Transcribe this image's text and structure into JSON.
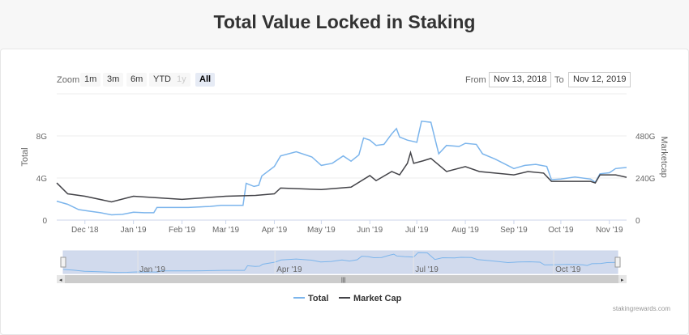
{
  "title": "Total Value Locked in Staking",
  "range_selector": {
    "zoom_label": "Zoom",
    "buttons": [
      {
        "label": "1m",
        "state": "normal"
      },
      {
        "label": "3m",
        "state": "normal"
      },
      {
        "label": "6m",
        "state": "normal"
      },
      {
        "label": "YTD",
        "state": "normal"
      },
      {
        "label": "1y",
        "state": "disabled"
      },
      {
        "label": "All",
        "state": "selected"
      }
    ],
    "from_label": "From",
    "from_value": "Nov 13, 2018",
    "to_label": "To",
    "to_value": "Nov 12, 2019"
  },
  "credit": "stakingrewards.com",
  "chart_data": {
    "type": "line",
    "title": "Total Value Locked in Staking",
    "xlim": [
      "2018-11-13",
      "2019-11-12"
    ],
    "x_ticks": [
      "Dec '18",
      "Jan '19",
      "Feb '19",
      "Mar '19",
      "Apr '19",
      "May '19",
      "Jun '19",
      "Jul '19",
      "Aug '19",
      "Sep '19",
      "Oct '19",
      "Nov '19"
    ],
    "y_left": {
      "label": "Total",
      "ticks": [
        "0",
        "4G",
        "8G"
      ],
      "range": [
        0,
        12
      ]
    },
    "y_right": {
      "label": "Marketcap",
      "ticks": [
        "0",
        "240G",
        "480G"
      ],
      "range": [
        0,
        720
      ]
    },
    "navigator_ticks": [
      "Jan '19",
      "Apr '19",
      "Jul '19",
      "Oct '19"
    ],
    "legend": "bottom-center",
    "grid": true,
    "colors": {
      "Total": "#7cb5ec",
      "Market Cap": "#434348"
    },
    "series": [
      {
        "name": "Total",
        "axis": "left",
        "unit": "G",
        "points": [
          [
            "2018-11-13",
            1.8
          ],
          [
            "2018-11-20",
            1.5
          ],
          [
            "2018-11-27",
            1.0
          ],
          [
            "2018-12-04",
            0.85
          ],
          [
            "2018-12-11",
            0.7
          ],
          [
            "2018-12-18",
            0.5
          ],
          [
            "2018-12-25",
            0.55
          ],
          [
            "2019-01-01",
            0.75
          ],
          [
            "2019-01-08",
            0.7
          ],
          [
            "2019-01-14",
            0.7
          ],
          [
            "2019-01-16",
            1.2
          ],
          [
            "2019-01-29",
            1.2
          ],
          [
            "2019-02-05",
            1.2
          ],
          [
            "2019-02-12",
            1.25
          ],
          [
            "2019-02-19",
            1.3
          ],
          [
            "2019-02-26",
            1.4
          ],
          [
            "2019-03-05",
            1.4
          ],
          [
            "2019-03-12",
            1.4
          ],
          [
            "2019-03-14",
            3.5
          ],
          [
            "2019-03-19",
            3.2
          ],
          [
            "2019-03-22",
            3.3
          ],
          [
            "2019-03-24",
            4.2
          ],
          [
            "2019-04-01",
            5.1
          ],
          [
            "2019-04-05",
            6.1
          ],
          [
            "2019-04-15",
            6.5
          ],
          [
            "2019-04-25",
            6.0
          ],
          [
            "2019-05-01",
            5.2
          ],
          [
            "2019-05-08",
            5.4
          ],
          [
            "2019-05-15",
            6.1
          ],
          [
            "2019-05-20",
            5.6
          ],
          [
            "2019-05-25",
            6.2
          ],
          [
            "2019-05-28",
            7.8
          ],
          [
            "2019-06-01",
            7.6
          ],
          [
            "2019-06-05",
            7.1
          ],
          [
            "2019-06-10",
            7.2
          ],
          [
            "2019-06-15",
            8.2
          ],
          [
            "2019-06-18",
            8.7
          ],
          [
            "2019-06-20",
            7.9
          ],
          [
            "2019-06-25",
            7.6
          ],
          [
            "2019-07-01",
            7.4
          ],
          [
            "2019-07-04",
            9.4
          ],
          [
            "2019-07-10",
            9.3
          ],
          [
            "2019-07-12",
            8.1
          ],
          [
            "2019-07-15",
            6.3
          ],
          [
            "2019-07-20",
            7.1
          ],
          [
            "2019-07-28",
            7.0
          ],
          [
            "2019-08-01",
            7.3
          ],
          [
            "2019-08-08",
            7.2
          ],
          [
            "2019-08-12",
            6.3
          ],
          [
            "2019-08-20",
            5.8
          ],
          [
            "2019-09-01",
            4.9
          ],
          [
            "2019-09-08",
            5.2
          ],
          [
            "2019-09-15",
            5.3
          ],
          [
            "2019-09-22",
            5.1
          ],
          [
            "2019-09-25",
            3.85
          ],
          [
            "2019-10-01",
            3.9
          ],
          [
            "2019-10-10",
            4.1
          ],
          [
            "2019-10-20",
            3.9
          ],
          [
            "2019-10-23",
            3.6
          ],
          [
            "2019-10-26",
            4.4
          ],
          [
            "2019-11-01",
            4.5
          ],
          [
            "2019-11-05",
            4.9
          ],
          [
            "2019-11-12",
            5.0
          ]
        ]
      },
      {
        "name": "Market Cap",
        "axis": "right",
        "unit": "G",
        "points": [
          [
            "2018-11-13",
            212
          ],
          [
            "2018-11-20",
            150
          ],
          [
            "2018-12-01",
            136
          ],
          [
            "2018-12-18",
            104
          ],
          [
            "2019-01-01",
            136
          ],
          [
            "2019-02-01",
            118
          ],
          [
            "2019-03-01",
            136
          ],
          [
            "2019-03-20",
            141
          ],
          [
            "2019-04-01",
            150
          ],
          [
            "2019-04-05",
            183
          ],
          [
            "2019-05-01",
            174
          ],
          [
            "2019-05-20",
            188
          ],
          [
            "2019-06-01",
            254
          ],
          [
            "2019-06-05",
            225
          ],
          [
            "2019-06-15",
            277
          ],
          [
            "2019-06-20",
            258
          ],
          [
            "2019-06-25",
            324
          ],
          [
            "2019-06-27",
            385
          ],
          [
            "2019-06-29",
            324
          ],
          [
            "2019-07-05",
            338
          ],
          [
            "2019-07-10",
            352
          ],
          [
            "2019-07-20",
            277
          ],
          [
            "2019-08-01",
            305
          ],
          [
            "2019-08-10",
            277
          ],
          [
            "2019-08-20",
            268
          ],
          [
            "2019-09-01",
            258
          ],
          [
            "2019-09-10",
            277
          ],
          [
            "2019-09-20",
            268
          ],
          [
            "2019-09-25",
            221
          ],
          [
            "2019-10-05",
            221
          ],
          [
            "2019-10-20",
            221
          ],
          [
            "2019-10-23",
            212
          ],
          [
            "2019-10-26",
            258
          ],
          [
            "2019-11-05",
            258
          ],
          [
            "2019-11-12",
            244
          ]
        ]
      }
    ]
  }
}
